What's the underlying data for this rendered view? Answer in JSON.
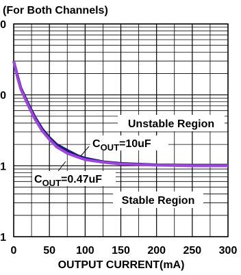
{
  "chart_data": {
    "type": "line",
    "title": "(For Both Channels)",
    "x_label": "OUTPUT CURRENT(mA)",
    "x": [
      0,
      5,
      10,
      20,
      30,
      40,
      50,
      60,
      75,
      90,
      100,
      125,
      150,
      200,
      250,
      300
    ],
    "series": [
      {
        "color": "#1c1a78",
        "values": [
          30,
          19,
          12.5,
          7.6,
          4.8,
          3.3,
          2.5,
          2.0,
          1.65,
          1.38,
          1.28,
          1.14,
          1.08,
          1.03,
          1.02,
          1.02
        ],
        "label": [
          "C",
          "OUT",
          "=10uF"
        ]
      },
      {
        "color": "#9e45e0",
        "values": [
          30,
          18,
          12,
          7.2,
          4.5,
          3.1,
          2.35,
          1.85,
          1.5,
          1.32,
          1.22,
          1.12,
          1.06,
          1.02,
          1.0,
          1.0
        ],
        "label": [
          "C",
          "OUT",
          "=0.47uF"
        ]
      }
    ],
    "annotations": [
      "Unstable Region",
      "Stable Region"
    ],
    "xlim": [
      0,
      300
    ],
    "xticks": [
      0,
      50,
      100,
      150,
      200,
      250,
      300
    ],
    "ylim": [
      0.1,
      100
    ],
    "yticks": [
      {
        "value": 0.1,
        "label": "1"
      },
      1,
      {
        "value": 10,
        "label": "0"
      },
      {
        "value": 100,
        "label": "0"
      }
    ],
    "log_y": true,
    "grid": true
  }
}
